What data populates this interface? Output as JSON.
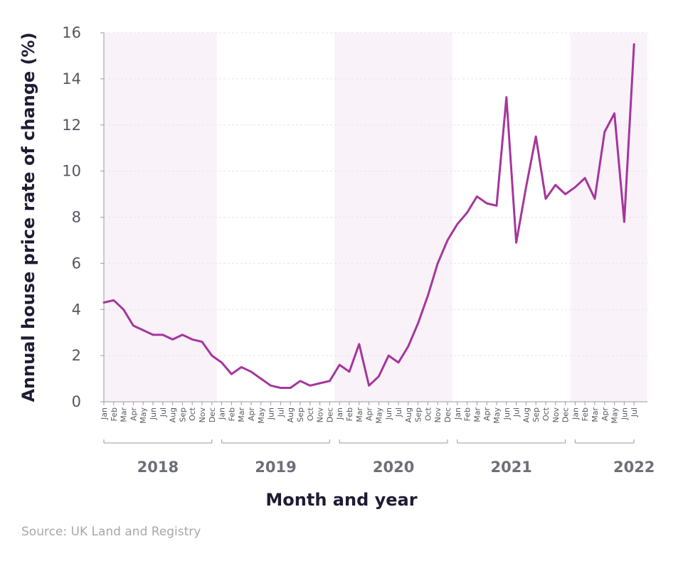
{
  "chart_data": {
    "type": "line",
    "title": "",
    "xlabel": "Month and year",
    "ylabel": "Annual house price rate of change (%)",
    "ylim": [
      0,
      16
    ],
    "yticks": [
      0,
      2,
      4,
      6,
      8,
      10,
      12,
      14,
      16
    ],
    "grid": true,
    "month_labels": [
      "Jan",
      "Feb",
      "Mar",
      "Apr",
      "May",
      "Jun",
      "Jul",
      "Aug",
      "Sep",
      "Oct",
      "Nov",
      "Dec"
    ],
    "year_groups": [
      {
        "year": "2018",
        "months": 12,
        "shaded": true
      },
      {
        "year": "2019",
        "months": 12,
        "shaded": false
      },
      {
        "year": "2020",
        "months": 12,
        "shaded": true
      },
      {
        "year": "2021",
        "months": 12,
        "shaded": false
      },
      {
        "year": "2022",
        "months": 7,
        "shaded": true
      }
    ],
    "series": [
      {
        "color": "#a6359c",
        "values": [
          4.3,
          4.4,
          4.0,
          3.3,
          3.1,
          2.9,
          2.9,
          2.7,
          2.9,
          2.7,
          2.6,
          2.0,
          1.7,
          1.2,
          1.5,
          1.3,
          1.0,
          0.7,
          0.6,
          0.6,
          0.9,
          0.7,
          0.8,
          0.9,
          1.6,
          1.3,
          2.5,
          0.7,
          1.1,
          2.0,
          1.7,
          2.4,
          3.4,
          4.6,
          6.0,
          7.0,
          7.7,
          8.2,
          8.9,
          8.6,
          8.5,
          13.2,
          6.9,
          9.3,
          11.5,
          8.8,
          9.4,
          9.0,
          9.3,
          9.7,
          8.8,
          11.7,
          12.5,
          7.8,
          15.5
        ]
      }
    ],
    "colors": {
      "line": "#a6359c",
      "shade": "#f9f3f9",
      "grid": "#e4e4e8",
      "axis": "#9a9aa2"
    }
  },
  "source": "Source: UK Land and Registry"
}
